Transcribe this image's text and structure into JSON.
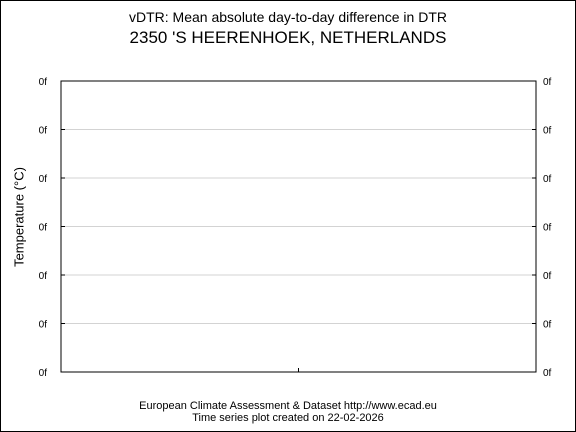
{
  "chart_data": {
    "type": "line",
    "title": "vDTR: Mean absolute day-to-day difference in DTR",
    "subtitle": "2350 'S HEERENHOEK, NETHERLANDS",
    "xlabel": "",
    "ylabel": "Temperature (°C)",
    "y_tick_labels": [
      "0f",
      "0f",
      "0f",
      "0f",
      "0f",
      "0f",
      "0f"
    ],
    "series": [],
    "grid": true,
    "colors": {
      "frame": "#000000",
      "grid": "#d3d3d3",
      "background": "#ffffff"
    }
  },
  "footer": {
    "line1": "European Climate Assessment & Dataset  http://www.ecad.eu",
    "line2": "Time series plot created on 22-02-2026"
  }
}
